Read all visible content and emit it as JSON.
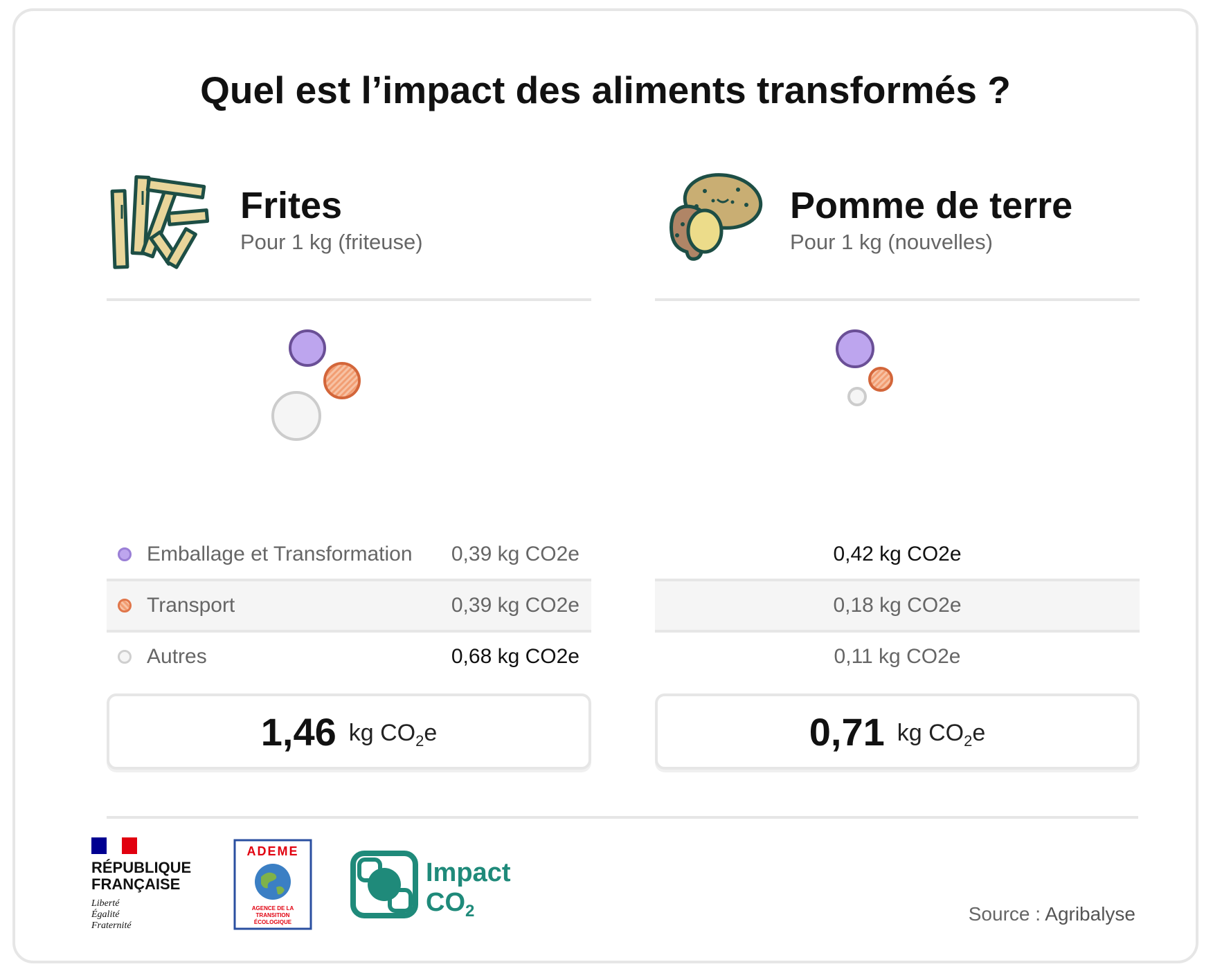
{
  "title": "Quel est l’impact des aliments transformés ?",
  "legend": {
    "emballage": "Emballage et Transformation",
    "transport": "Transport",
    "autres": "Autres"
  },
  "colors": {
    "emballage": "#bda5ee",
    "transport": "#f29e73",
    "autres": "#f5f5f5"
  },
  "items": [
    {
      "name": "Frites",
      "subtitle": "Pour 1 kg (friteuse)",
      "icon": "fries-icon",
      "values": {
        "emballage": "0,39 kg CO2e",
        "transport": "0,39 kg CO2e",
        "autres": "0,68 kg CO2e"
      },
      "total_value": "1,46",
      "total_unit": "kg CO",
      "total_unit_sub": "2",
      "total_unit_end": "e"
    },
    {
      "name": "Pomme de terre",
      "subtitle": "Pour 1 kg (nouvelles)",
      "icon": "potato-icon",
      "values": {
        "emballage": "0,42 kg CO2e",
        "transport": "0,18 kg CO2e",
        "autres": "0,11 kg CO2e"
      },
      "total_value": "0,71",
      "total_unit": "kg CO",
      "total_unit_sub": "2",
      "total_unit_end": "e"
    }
  ],
  "footer": {
    "rf_line1": "RÉPUBLIQUE",
    "rf_line2": "FRANÇAISE",
    "rf_motto1": "Liberté",
    "rf_motto2": "Égalité",
    "rf_motto3": "Fraternité",
    "ademe_name": "ADEME",
    "ademe_line1": "AGENCE DE LA",
    "ademe_line2": "TRANSITION",
    "ademe_line3": "ÉCOLOGIQUE",
    "impact_line1": "Impact",
    "impact_line2": "CO",
    "impact_sub": "2",
    "source_label": "Source : ",
    "source_value": "Agribalyse"
  }
}
